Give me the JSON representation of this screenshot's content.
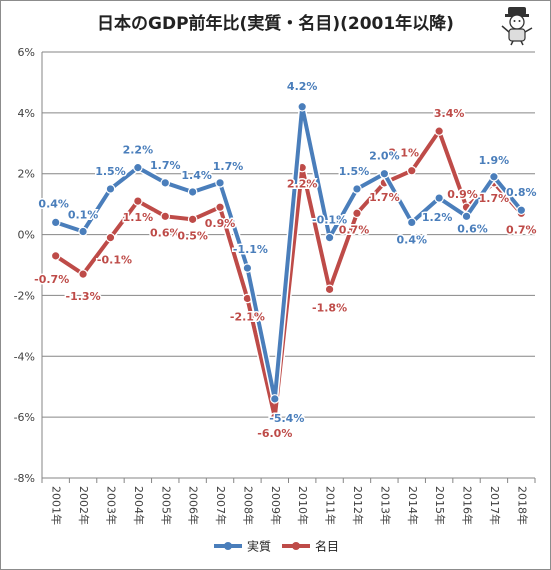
{
  "page": {
    "title": "日本のGDP前年比(実質・名目)(2001年以降)"
  },
  "colors": {
    "real": "#4a7ebb",
    "nominal": "#be4b48",
    "grid": "#868686",
    "axis_text": "#404040"
  },
  "icons": {
    "mascot": "mascot-illustration-icon"
  },
  "chart_data": {
    "type": "line",
    "title": "日本のGDP前年比(実質・名目)(2001年以降)",
    "xlabel": "",
    "ylabel": "",
    "categories": [
      "2001年",
      "2002年",
      "2003年",
      "2004年",
      "2005年",
      "2006年",
      "2007年",
      "2008年",
      "2009年",
      "2010年",
      "2011年",
      "2012年",
      "2013年",
      "2014年",
      "2015年",
      "2016年",
      "2017年",
      "2018年"
    ],
    "ylim": [
      -8,
      6
    ],
    "yticks": [
      -8,
      -6,
      -4,
      -2,
      0,
      2,
      4,
      6
    ],
    "ytick_labels": [
      "-8%",
      "-6%",
      "-4%",
      "-2%",
      "0%",
      "2%",
      "4%",
      "6%"
    ],
    "grid": true,
    "legend_position": "bottom",
    "series": [
      {
        "name": "実質",
        "color": "#4a7ebb",
        "values": [
          0.4,
          0.1,
          1.5,
          2.2,
          1.7,
          1.4,
          1.7,
          -1.1,
          -5.4,
          4.2,
          -0.1,
          1.5,
          2.0,
          0.4,
          1.2,
          0.6,
          1.9,
          0.8
        ],
        "labels": [
          "0.4%",
          "0.1%",
          "1.5%",
          "2.2%",
          "1.7%",
          "1.4%",
          "1.7%",
          "-1.1%",
          "-5.4%",
          "4.2%",
          "-0.1%",
          "1.5%",
          "2.0%",
          "0.4%",
          "1.2%",
          "0.6%",
          "1.9%",
          "0.8%"
        ]
      },
      {
        "name": "名目",
        "color": "#be4b48",
        "values": [
          -0.7,
          -1.3,
          -0.1,
          1.1,
          0.6,
          0.5,
          0.9,
          -2.1,
          -6.0,
          2.2,
          -1.8,
          0.7,
          1.7,
          2.1,
          3.4,
          0.9,
          1.7,
          0.7
        ],
        "labels": [
          "-0.7%",
          "-1.3%",
          "-0.1%",
          "1.1%",
          "0.6%",
          "0.5%",
          "0.9%",
          "-2.1%",
          "-6.0%",
          "2.2%",
          "-1.8%",
          "0.7%",
          "1.7%",
          "2.1%",
          "3.4%",
          "0.9%",
          "1.7%",
          "0.7%"
        ]
      }
    ]
  }
}
